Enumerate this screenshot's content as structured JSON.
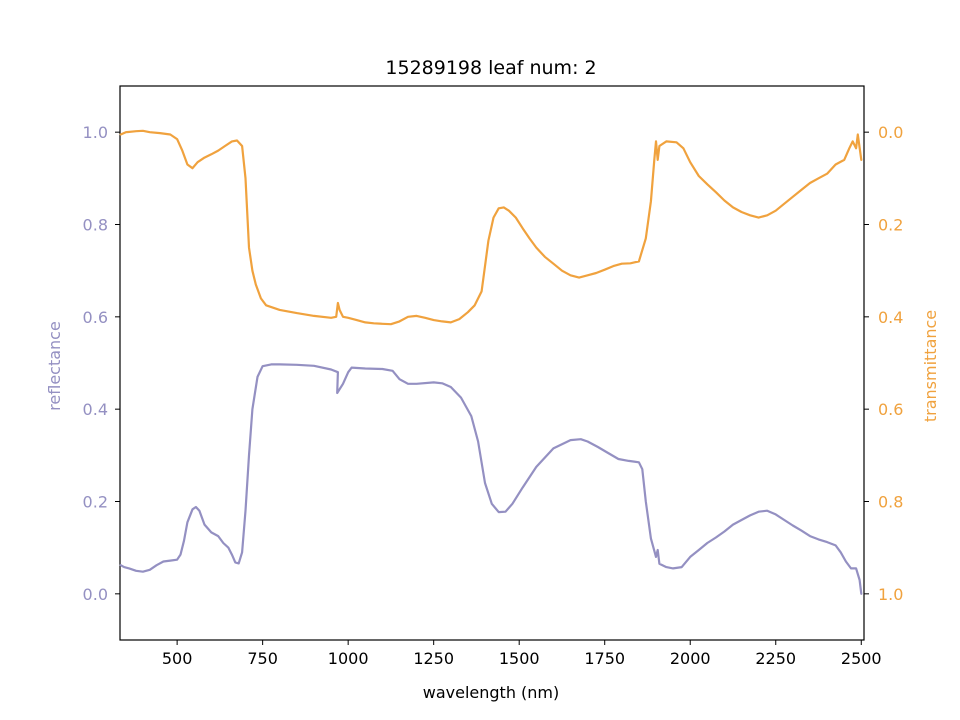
{
  "chart_data": {
    "type": "line",
    "title": "15289198 leaf num: 2",
    "xlabel": "wavelength (nm)",
    "ylabel": "reflectance",
    "y2label": "transmittance",
    "xlim": [
      333,
      2508
    ],
    "ylim": [
      -0.1,
      1.1
    ],
    "y2lim": [
      1.1,
      -0.1
    ],
    "y2_inverted": true,
    "x_ticks": [
      500,
      750,
      1000,
      1250,
      1500,
      1750,
      2000,
      2250,
      2500
    ],
    "y_ticks": [
      0.0,
      0.2,
      0.4,
      0.6,
      0.8,
      1.0
    ],
    "y2_ticks": [
      0.0,
      0.2,
      0.4,
      0.6,
      0.8,
      1.0
    ],
    "grid": false,
    "legend": "none",
    "colors": {
      "reflectance": "#9490c2",
      "transmittance": "#f0a23e"
    },
    "series": [
      {
        "key": "reflectance",
        "axis": "left",
        "points": [
          [
            335,
            0.062
          ],
          [
            345,
            0.058
          ],
          [
            360,
            0.055
          ],
          [
            380,
            0.05
          ],
          [
            400,
            0.048
          ],
          [
            420,
            0.052
          ],
          [
            440,
            0.062
          ],
          [
            460,
            0.07
          ],
          [
            480,
            0.072
          ],
          [
            500,
            0.074
          ],
          [
            510,
            0.085
          ],
          [
            520,
            0.115
          ],
          [
            530,
            0.155
          ],
          [
            545,
            0.183
          ],
          [
            555,
            0.188
          ],
          [
            565,
            0.18
          ],
          [
            580,
            0.15
          ],
          [
            600,
            0.133
          ],
          [
            620,
            0.125
          ],
          [
            635,
            0.11
          ],
          [
            650,
            0.1
          ],
          [
            660,
            0.085
          ],
          [
            670,
            0.068
          ],
          [
            680,
            0.066
          ],
          [
            690,
            0.09
          ],
          [
            700,
            0.18
          ],
          [
            710,
            0.3
          ],
          [
            720,
            0.4
          ],
          [
            735,
            0.47
          ],
          [
            750,
            0.493
          ],
          [
            775,
            0.497
          ],
          [
            800,
            0.497
          ],
          [
            850,
            0.496
          ],
          [
            900,
            0.494
          ],
          [
            950,
            0.486
          ],
          [
            970,
            0.48
          ],
          [
            968,
            0.435
          ],
          [
            985,
            0.455
          ],
          [
            1000,
            0.48
          ],
          [
            1010,
            0.49
          ],
          [
            1050,
            0.488
          ],
          [
            1100,
            0.487
          ],
          [
            1130,
            0.483
          ],
          [
            1150,
            0.465
          ],
          [
            1175,
            0.455
          ],
          [
            1200,
            0.455
          ],
          [
            1250,
            0.458
          ],
          [
            1275,
            0.456
          ],
          [
            1300,
            0.448
          ],
          [
            1330,
            0.425
          ],
          [
            1360,
            0.385
          ],
          [
            1380,
            0.33
          ],
          [
            1400,
            0.24
          ],
          [
            1420,
            0.195
          ],
          [
            1440,
            0.177
          ],
          [
            1460,
            0.178
          ],
          [
            1480,
            0.195
          ],
          [
            1510,
            0.23
          ],
          [
            1550,
            0.275
          ],
          [
            1600,
            0.315
          ],
          [
            1650,
            0.333
          ],
          [
            1680,
            0.335
          ],
          [
            1700,
            0.33
          ],
          [
            1730,
            0.318
          ],
          [
            1760,
            0.305
          ],
          [
            1790,
            0.292
          ],
          [
            1820,
            0.288
          ],
          [
            1850,
            0.285
          ],
          [
            1860,
            0.27
          ],
          [
            1870,
            0.2
          ],
          [
            1885,
            0.12
          ],
          [
            1900,
            0.08
          ],
          [
            1905,
            0.095
          ],
          [
            1910,
            0.065
          ],
          [
            1930,
            0.058
          ],
          [
            1950,
            0.055
          ],
          [
            1975,
            0.058
          ],
          [
            2000,
            0.08
          ],
          [
            2025,
            0.095
          ],
          [
            2050,
            0.11
          ],
          [
            2075,
            0.122
          ],
          [
            2100,
            0.135
          ],
          [
            2125,
            0.15
          ],
          [
            2150,
            0.16
          ],
          [
            2175,
            0.17
          ],
          [
            2200,
            0.178
          ],
          [
            2225,
            0.18
          ],
          [
            2250,
            0.172
          ],
          [
            2275,
            0.16
          ],
          [
            2300,
            0.148
          ],
          [
            2325,
            0.137
          ],
          [
            2350,
            0.125
          ],
          [
            2375,
            0.118
          ],
          [
            2400,
            0.112
          ],
          [
            2425,
            0.105
          ],
          [
            2440,
            0.09
          ],
          [
            2455,
            0.07
          ],
          [
            2470,
            0.055
          ],
          [
            2485,
            0.055
          ],
          [
            2495,
            0.03
          ],
          [
            2500,
            0.0
          ]
        ]
      },
      {
        "key": "transmittance",
        "axis": "right",
        "points": [
          [
            335,
            0.005
          ],
          [
            350,
            0.0
          ],
          [
            380,
            -0.002
          ],
          [
            400,
            -0.003
          ],
          [
            420,
            0.0
          ],
          [
            450,
            0.002
          ],
          [
            480,
            0.005
          ],
          [
            500,
            0.015
          ],
          [
            515,
            0.04
          ],
          [
            530,
            0.07
          ],
          [
            545,
            0.078
          ],
          [
            560,
            0.065
          ],
          [
            580,
            0.055
          ],
          [
            600,
            0.048
          ],
          [
            620,
            0.04
          ],
          [
            640,
            0.03
          ],
          [
            660,
            0.02
          ],
          [
            675,
            0.018
          ],
          [
            690,
            0.03
          ],
          [
            700,
            0.1
          ],
          [
            710,
            0.25
          ],
          [
            720,
            0.3
          ],
          [
            730,
            0.33
          ],
          [
            745,
            0.36
          ],
          [
            760,
            0.375
          ],
          [
            800,
            0.385
          ],
          [
            850,
            0.392
          ],
          [
            900,
            0.398
          ],
          [
            950,
            0.402
          ],
          [
            965,
            0.4
          ],
          [
            970,
            0.37
          ],
          [
            975,
            0.385
          ],
          [
            985,
            0.4
          ],
          [
            1000,
            0.402
          ],
          [
            1025,
            0.407
          ],
          [
            1050,
            0.412
          ],
          [
            1075,
            0.414
          ],
          [
            1100,
            0.415
          ],
          [
            1125,
            0.416
          ],
          [
            1150,
            0.41
          ],
          [
            1175,
            0.4
          ],
          [
            1200,
            0.398
          ],
          [
            1225,
            0.402
          ],
          [
            1250,
            0.407
          ],
          [
            1275,
            0.41
          ],
          [
            1300,
            0.412
          ],
          [
            1325,
            0.405
          ],
          [
            1350,
            0.39
          ],
          [
            1370,
            0.375
          ],
          [
            1390,
            0.345
          ],
          [
            1400,
            0.29
          ],
          [
            1410,
            0.235
          ],
          [
            1425,
            0.185
          ],
          [
            1440,
            0.165
          ],
          [
            1455,
            0.163
          ],
          [
            1470,
            0.17
          ],
          [
            1490,
            0.185
          ],
          [
            1510,
            0.208
          ],
          [
            1530,
            0.23
          ],
          [
            1550,
            0.25
          ],
          [
            1575,
            0.27
          ],
          [
            1600,
            0.285
          ],
          [
            1625,
            0.3
          ],
          [
            1650,
            0.31
          ],
          [
            1675,
            0.315
          ],
          [
            1700,
            0.31
          ],
          [
            1725,
            0.305
          ],
          [
            1750,
            0.298
          ],
          [
            1775,
            0.29
          ],
          [
            1800,
            0.285
          ],
          [
            1825,
            0.284
          ],
          [
            1850,
            0.28
          ],
          [
            1870,
            0.23
          ],
          [
            1885,
            0.15
          ],
          [
            1895,
            0.06
          ],
          [
            1900,
            0.02
          ],
          [
            1905,
            0.06
          ],
          [
            1910,
            0.03
          ],
          [
            1930,
            0.02
          ],
          [
            1960,
            0.022
          ],
          [
            1980,
            0.035
          ],
          [
            2000,
            0.065
          ],
          [
            2025,
            0.095
          ],
          [
            2050,
            0.113
          ],
          [
            2075,
            0.13
          ],
          [
            2100,
            0.148
          ],
          [
            2125,
            0.163
          ],
          [
            2150,
            0.173
          ],
          [
            2175,
            0.18
          ],
          [
            2200,
            0.185
          ],
          [
            2225,
            0.18
          ],
          [
            2250,
            0.17
          ],
          [
            2275,
            0.155
          ],
          [
            2300,
            0.14
          ],
          [
            2325,
            0.125
          ],
          [
            2350,
            0.11
          ],
          [
            2375,
            0.1
          ],
          [
            2400,
            0.09
          ],
          [
            2425,
            0.07
          ],
          [
            2450,
            0.06
          ],
          [
            2465,
            0.035
          ],
          [
            2475,
            0.02
          ],
          [
            2485,
            0.035
          ],
          [
            2490,
            0.005
          ],
          [
            2500,
            0.06
          ]
        ]
      }
    ]
  }
}
